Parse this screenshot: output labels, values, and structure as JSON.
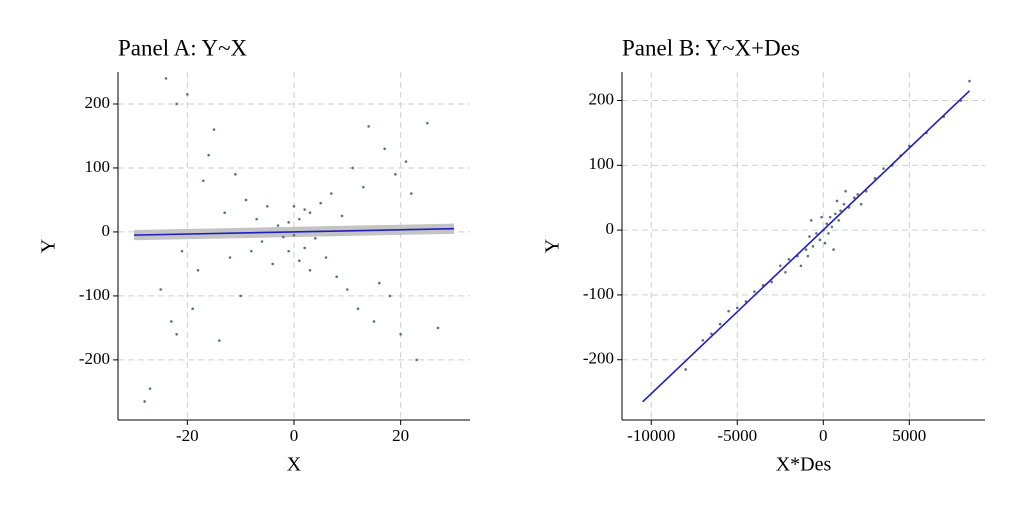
{
  "chart_data": [
    {
      "type": "scatter",
      "title": "Panel A: Y~X",
      "x_label": "X",
      "y_label": "Y",
      "x": [
        -28,
        -27,
        -24,
        -22,
        -20,
        -25,
        -22,
        -19,
        -18,
        -17,
        -16,
        -15,
        -14,
        -13,
        -12,
        -11,
        -10,
        -9,
        -8,
        -7,
        -6,
        -5,
        -4,
        -3,
        -2,
        -1,
        0,
        1,
        2,
        3,
        4,
        5,
        6,
        7,
        8,
        9,
        10,
        11,
        12,
        13,
        14,
        15,
        16,
        17,
        18,
        19,
        20,
        21,
        23,
        25,
        27,
        22,
        -21,
        -23,
        0,
        1,
        -1,
        2,
        3
      ],
      "y": [
        -265,
        -245,
        240,
        200,
        215,
        -90,
        -160,
        -120,
        -60,
        80,
        120,
        160,
        -170,
        30,
        -40,
        90,
        -100,
        50,
        -30,
        20,
        -15,
        40,
        -50,
        10,
        -8,
        15,
        -5,
        20,
        -25,
        30,
        -10,
        45,
        -40,
        60,
        -70,
        25,
        -90,
        100,
        -120,
        70,
        165,
        -140,
        -80,
        130,
        -100,
        90,
        -160,
        110,
        -200,
        170,
        -150,
        60,
        -30,
        -140,
        40,
        -45,
        -30,
        35,
        -60
      ],
      "color": "#5f7080",
      "fit": {
        "x": [
          -30,
          30
        ],
        "y": [
          -5,
          5
        ],
        "lower": [
          -13,
          -3
        ],
        "upper": [
          3,
          13
        ],
        "color": "#1f1fbf",
        "band_color": "#c4c4c4"
      },
      "xlim": [
        -33,
        33
      ],
      "ylim": [
        -294,
        250
      ],
      "xticks": [
        -20,
        0,
        20
      ],
      "yticks": [
        -200,
        -100,
        0,
        100,
        200
      ],
      "grid": true
    },
    {
      "type": "scatter",
      "title": "Panel B: Y~X+Des",
      "x_label": "X*Des",
      "y_label": "Y",
      "x": [
        -8000,
        -7000,
        -6500,
        -5500,
        -5000,
        -4500,
        -4000,
        -3500,
        -3000,
        -2500,
        -2000,
        -1500,
        -1000,
        -800,
        -600,
        -400,
        -200,
        0,
        200,
        300,
        400,
        500,
        700,
        900,
        1000,
        1200,
        1500,
        1800,
        2000,
        2500,
        3000,
        3500,
        4000,
        5000,
        6000,
        7000,
        8000,
        8500,
        -100,
        100,
        600,
        -700,
        1300,
        -1300,
        2200,
        -2200,
        -900,
        800,
        4500,
        -6000
      ],
      "y": [
        -215,
        -170,
        -160,
        -125,
        -120,
        -110,
        -95,
        -85,
        -80,
        -55,
        -45,
        -40,
        -30,
        -10,
        -25,
        -5,
        -15,
        0,
        10,
        -5,
        20,
        5,
        25,
        15,
        30,
        40,
        35,
        50,
        55,
        60,
        80,
        95,
        100,
        130,
        150,
        175,
        200,
        230,
        20,
        -20,
        -30,
        15,
        60,
        -55,
        40,
        -65,
        -40,
        45,
        115,
        -145
      ],
      "color": "#5f7080",
      "fit": {
        "x": [
          -10500,
          8500
        ],
        "y": [
          -265,
          215
        ],
        "color": "#1f1fbf"
      },
      "xlim": [
        -11700,
        9400
      ],
      "ylim": [
        -293,
        244
      ],
      "xticks": [
        -10000,
        -5000,
        0,
        5000
      ],
      "yticks": [
        -200,
        -100,
        0,
        100,
        200
      ],
      "grid": true
    }
  ]
}
